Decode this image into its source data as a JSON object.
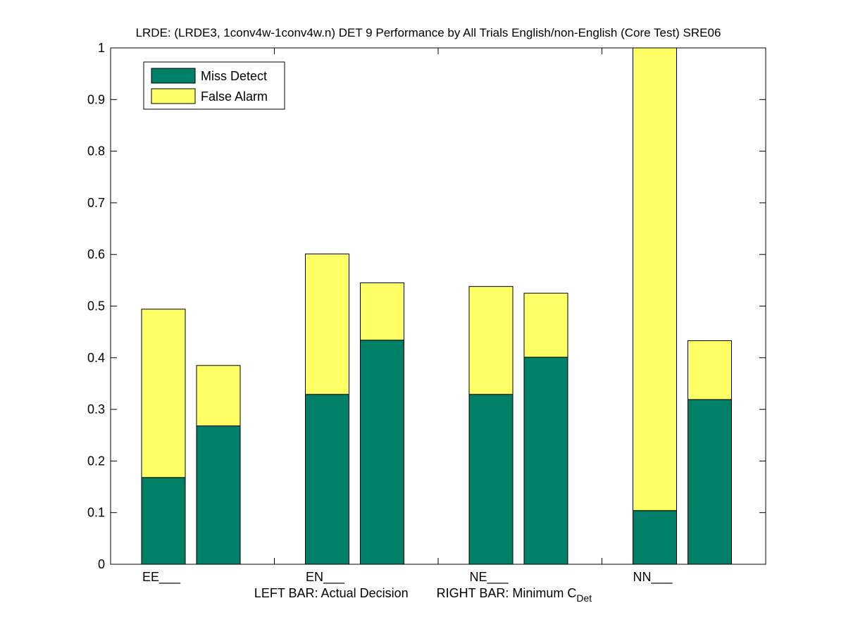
{
  "chart_data": {
    "type": "bar",
    "title": "LRDE: (LRDE3, 1conv4w-1conv4w.n) DET 9 Performance by All Trials English/non-English (Core Test) SRE06",
    "categories": [
      "EE___",
      "EN___",
      "NE___",
      "NN___"
    ],
    "xlabel_left": "LEFT BAR: Actual Decision",
    "xlabel_right_prefix": "RIGHT BAR: Minimum C",
    "xlabel_right_subscript": "Det",
    "ylim": [
      0,
      1
    ],
    "yticks": [
      "0",
      "0.1",
      "0.2",
      "0.3",
      "0.4",
      "0.5",
      "0.6",
      "0.7",
      "0.8",
      "0.9",
      "1"
    ],
    "legend_position": "top-left",
    "stacked": true,
    "series": [
      {
        "name": "Miss Detect",
        "color": "#008066",
        "actual": [
          0.168,
          0.329,
          0.329,
          0.104
        ],
        "minimum": [
          0.268,
          0.434,
          0.401,
          0.319
        ]
      },
      {
        "name": "False Alarm",
        "color": "#ffff66",
        "actual": [
          0.326,
          0.272,
          0.209,
          0.896
        ],
        "minimum": [
          0.117,
          0.111,
          0.124,
          0.114
        ]
      }
    ]
  }
}
